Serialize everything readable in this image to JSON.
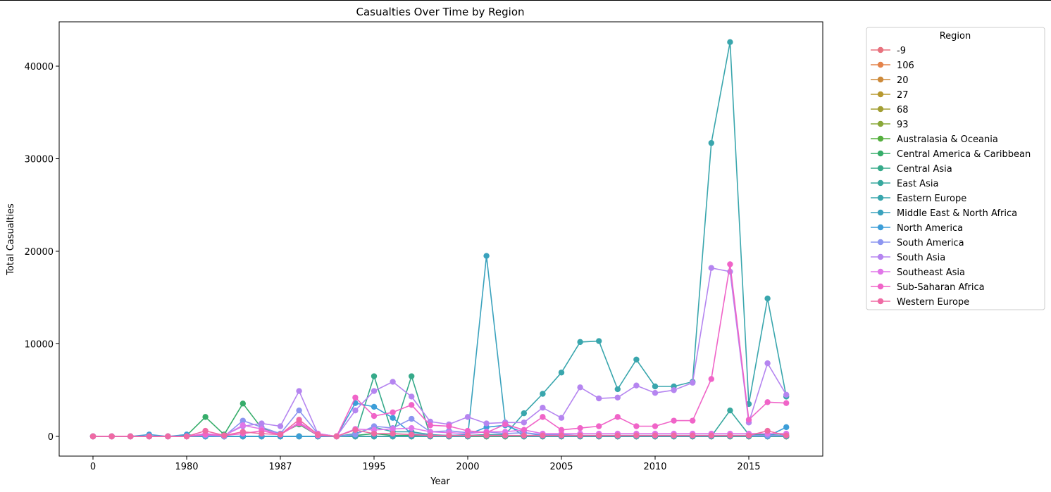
{
  "chart_data": {
    "type": "line",
    "title": "Casualties Over Time by Region",
    "xlabel": "Year",
    "ylabel": "Total Casualties",
    "ylim": [
      -2000,
      45000
    ],
    "yticks": [
      0,
      10000,
      20000,
      30000,
      40000
    ],
    "x_tick_labels": [
      {
        "at": 0,
        "label": "0"
      },
      {
        "at": 5,
        "label": "1980"
      },
      {
        "at": 10,
        "label": "1987"
      },
      {
        "at": 15,
        "label": "1995"
      },
      {
        "at": 20,
        "label": "2000"
      },
      {
        "at": 25,
        "label": "2005"
      },
      {
        "at": 30,
        "label": "2010"
      },
      {
        "at": 35,
        "label": "2015"
      }
    ],
    "x_positions": 38,
    "legend": {
      "title": "Region",
      "placement": "outside-right"
    },
    "series": [
      {
        "name": "-9",
        "color": "#e8727e",
        "values": [
          0,
          0,
          0,
          0,
          0,
          0,
          0,
          0,
          0,
          0,
          0,
          0,
          0,
          0,
          0,
          0,
          0,
          0,
          0,
          0,
          0,
          0,
          0,
          0,
          0,
          0,
          0,
          0,
          0,
          0,
          0,
          0,
          0,
          0,
          0,
          0,
          0,
          0
        ]
      },
      {
        "name": "106",
        "color": "#e4834b",
        "values": [
          0,
          0,
          0,
          0,
          0,
          0,
          0,
          0,
          0,
          0,
          0,
          0,
          0,
          0,
          0,
          0,
          0,
          0,
          0,
          0,
          0,
          0,
          0,
          0,
          0,
          0,
          0,
          0,
          0,
          0,
          0,
          0,
          0,
          0,
          0,
          0,
          0,
          0
        ]
      },
      {
        "name": "20",
        "color": "#cd8a3a",
        "values": [
          0,
          0,
          0,
          0,
          0,
          0,
          0,
          0,
          0,
          0,
          0,
          0,
          0,
          0,
          0,
          0,
          0,
          0,
          0,
          0,
          0,
          0,
          0,
          0,
          0,
          0,
          0,
          0,
          0,
          0,
          0,
          0,
          0,
          0,
          0,
          0,
          0,
          0
        ]
      },
      {
        "name": "27",
        "color": "#b7982f",
        "values": [
          0,
          0,
          0,
          0,
          0,
          0,
          0,
          0,
          0,
          0,
          0,
          0,
          0,
          0,
          0,
          0,
          0,
          0,
          0,
          0,
          0,
          0,
          0,
          0,
          0,
          0,
          0,
          0,
          0,
          0,
          0,
          0,
          0,
          0,
          0,
          0,
          0,
          0
        ]
      },
      {
        "name": "68",
        "color": "#a29e33",
        "values": [
          0,
          0,
          0,
          0,
          0,
          0,
          0,
          0,
          0,
          0,
          0,
          0,
          0,
          0,
          0,
          0,
          0,
          0,
          0,
          0,
          0,
          0,
          0,
          0,
          0,
          0,
          0,
          0,
          0,
          0,
          0,
          0,
          0,
          0,
          0,
          0,
          0,
          0
        ]
      },
      {
        "name": "93",
        "color": "#8aa839",
        "values": [
          0,
          0,
          0,
          0,
          0,
          0,
          0,
          0,
          0,
          0,
          0,
          0,
          0,
          0,
          0,
          0,
          0,
          0,
          0,
          0,
          0,
          0,
          0,
          0,
          0,
          0,
          0,
          0,
          0,
          0,
          0,
          0,
          0,
          0,
          0,
          0,
          0,
          0
        ]
      },
      {
        "name": "Australasia & Oceania",
        "color": "#55af3e",
        "values": [
          0,
          0,
          0,
          0,
          0,
          0,
          0,
          0,
          0,
          0,
          0,
          0,
          0,
          0,
          0,
          0,
          0,
          0,
          0,
          0,
          0,
          0,
          0,
          0,
          0,
          0,
          0,
          0,
          0,
          0,
          0,
          0,
          0,
          0,
          0,
          0,
          0,
          0
        ]
      },
      {
        "name": "Central America & Caribbean",
        "color": "#36ad6a",
        "values": [
          0,
          0,
          0,
          0,
          0,
          100,
          2100,
          200,
          3550,
          900,
          300,
          1300,
          100,
          0,
          100,
          300,
          100,
          100,
          100,
          100,
          100,
          50,
          50,
          50,
          50,
          50,
          50,
          50,
          50,
          50,
          50,
          50,
          50,
          50,
          50,
          50,
          50,
          50
        ]
      },
      {
        "name": "Central Asia",
        "color": "#36aa8a",
        "values": [
          0,
          0,
          0,
          0,
          0,
          0,
          0,
          0,
          0,
          0,
          0,
          0,
          0,
          0,
          100,
          6500,
          200,
          6500,
          100,
          100,
          100,
          50,
          50,
          50,
          50,
          50,
          50,
          50,
          50,
          50,
          50,
          50,
          50,
          50,
          50,
          50,
          50,
          50
        ]
      },
      {
        "name": "East Asia",
        "color": "#37a89e",
        "values": [
          0,
          0,
          0,
          0,
          0,
          0,
          0,
          0,
          0,
          0,
          0,
          0,
          0,
          0,
          0,
          0,
          0,
          0,
          0,
          0,
          0,
          0,
          0,
          0,
          0,
          0,
          0,
          0,
          0,
          0,
          0,
          0,
          0,
          0,
          2800,
          200,
          200,
          100
        ]
      },
      {
        "name": "Eastern Europe",
        "color": "#39a6ad",
        "values": [
          0,
          0,
          0,
          0,
          0,
          0,
          0,
          0,
          0,
          0,
          0,
          0,
          0,
          0,
          300,
          1000,
          500,
          500,
          200,
          100,
          100,
          200,
          200,
          2500,
          4600,
          6900,
          10200,
          10300,
          5100,
          8300,
          5400,
          5400,
          5900,
          31700,
          42600,
          3500,
          14900,
          4300
        ]
      },
      {
        "name": "Middle East & North Africa",
        "color": "#3aa2bd",
        "values": [
          0,
          0,
          0,
          0,
          0,
          0,
          0,
          0,
          0,
          0,
          0,
          0,
          0,
          0,
          0,
          0,
          0,
          0,
          0,
          0,
          0,
          19500,
          1500,
          0,
          0,
          0,
          0,
          0,
          0,
          0,
          0,
          0,
          0,
          0,
          0,
          0,
          0,
          0
        ]
      },
      {
        "name": "North America",
        "color": "#3d9ed8",
        "values": [
          0,
          0,
          0,
          200,
          0,
          200,
          0,
          0,
          0,
          0,
          0,
          0,
          0,
          0,
          3600,
          3200,
          2000,
          300,
          100,
          100,
          200,
          1000,
          1200,
          400,
          100,
          100,
          100,
          100,
          100,
          100,
          100,
          100,
          100,
          100,
          100,
          100,
          0,
          1000
        ]
      },
      {
        "name": "South America",
        "color": "#8c95f0",
        "values": [
          0,
          0,
          0,
          0,
          0,
          0,
          100,
          0,
          1700,
          1000,
          300,
          2800,
          300,
          0,
          200,
          1100,
          900,
          1900,
          500,
          600,
          400,
          500,
          300,
          400,
          200,
          200,
          100,
          100,
          100,
          100,
          100,
          100,
          100,
          100,
          100,
          100,
          100,
          100
        ]
      },
      {
        "name": "South Asia",
        "color": "#b585f0",
        "values": [
          0,
          0,
          0,
          0,
          0,
          0,
          200,
          100,
          1100,
          1400,
          1100,
          4900,
          300,
          0,
          2800,
          4900,
          5900,
          4300,
          1600,
          1300,
          2100,
          1400,
          1500,
          1500,
          3100,
          2000,
          5300,
          4100,
          4200,
          5500,
          4700,
          5000,
          5800,
          18200,
          17800,
          1500,
          7900,
          4500
        ]
      },
      {
        "name": "Southeast Asia",
        "color": "#e076e8",
        "values": [
          0,
          0,
          0,
          0,
          0,
          0,
          300,
          100,
          1200,
          800,
          200,
          1500,
          300,
          0,
          800,
          700,
          800,
          900,
          500,
          400,
          300,
          500,
          500,
          700,
          300,
          300,
          300,
          300,
          300,
          300,
          300,
          300,
          300,
          300,
          300,
          300,
          300,
          300
        ]
      },
      {
        "name": "Sub-Saharan Africa",
        "color": "#f064c8",
        "values": [
          0,
          0,
          0,
          0,
          0,
          0,
          200,
          100,
          300,
          600,
          200,
          1400,
          100,
          0,
          4200,
          2200,
          2600,
          3400,
          1200,
          1100,
          600,
          400,
          1300,
          700,
          2100,
          700,
          900,
          1100,
          2100,
          1100,
          1100,
          1700,
          1700,
          6200,
          18600,
          1800,
          3700,
          3600
        ]
      },
      {
        "name": "Western Europe",
        "color": "#ef6aa4",
        "values": [
          0,
          0,
          0,
          0,
          0,
          0,
          600,
          100,
          500,
          300,
          200,
          1800,
          200,
          0,
          700,
          300,
          300,
          200,
          100,
          100,
          100,
          100,
          100,
          100,
          100,
          100,
          100,
          100,
          100,
          100,
          100,
          100,
          100,
          100,
          100,
          100,
          600,
          100
        ]
      }
    ]
  }
}
